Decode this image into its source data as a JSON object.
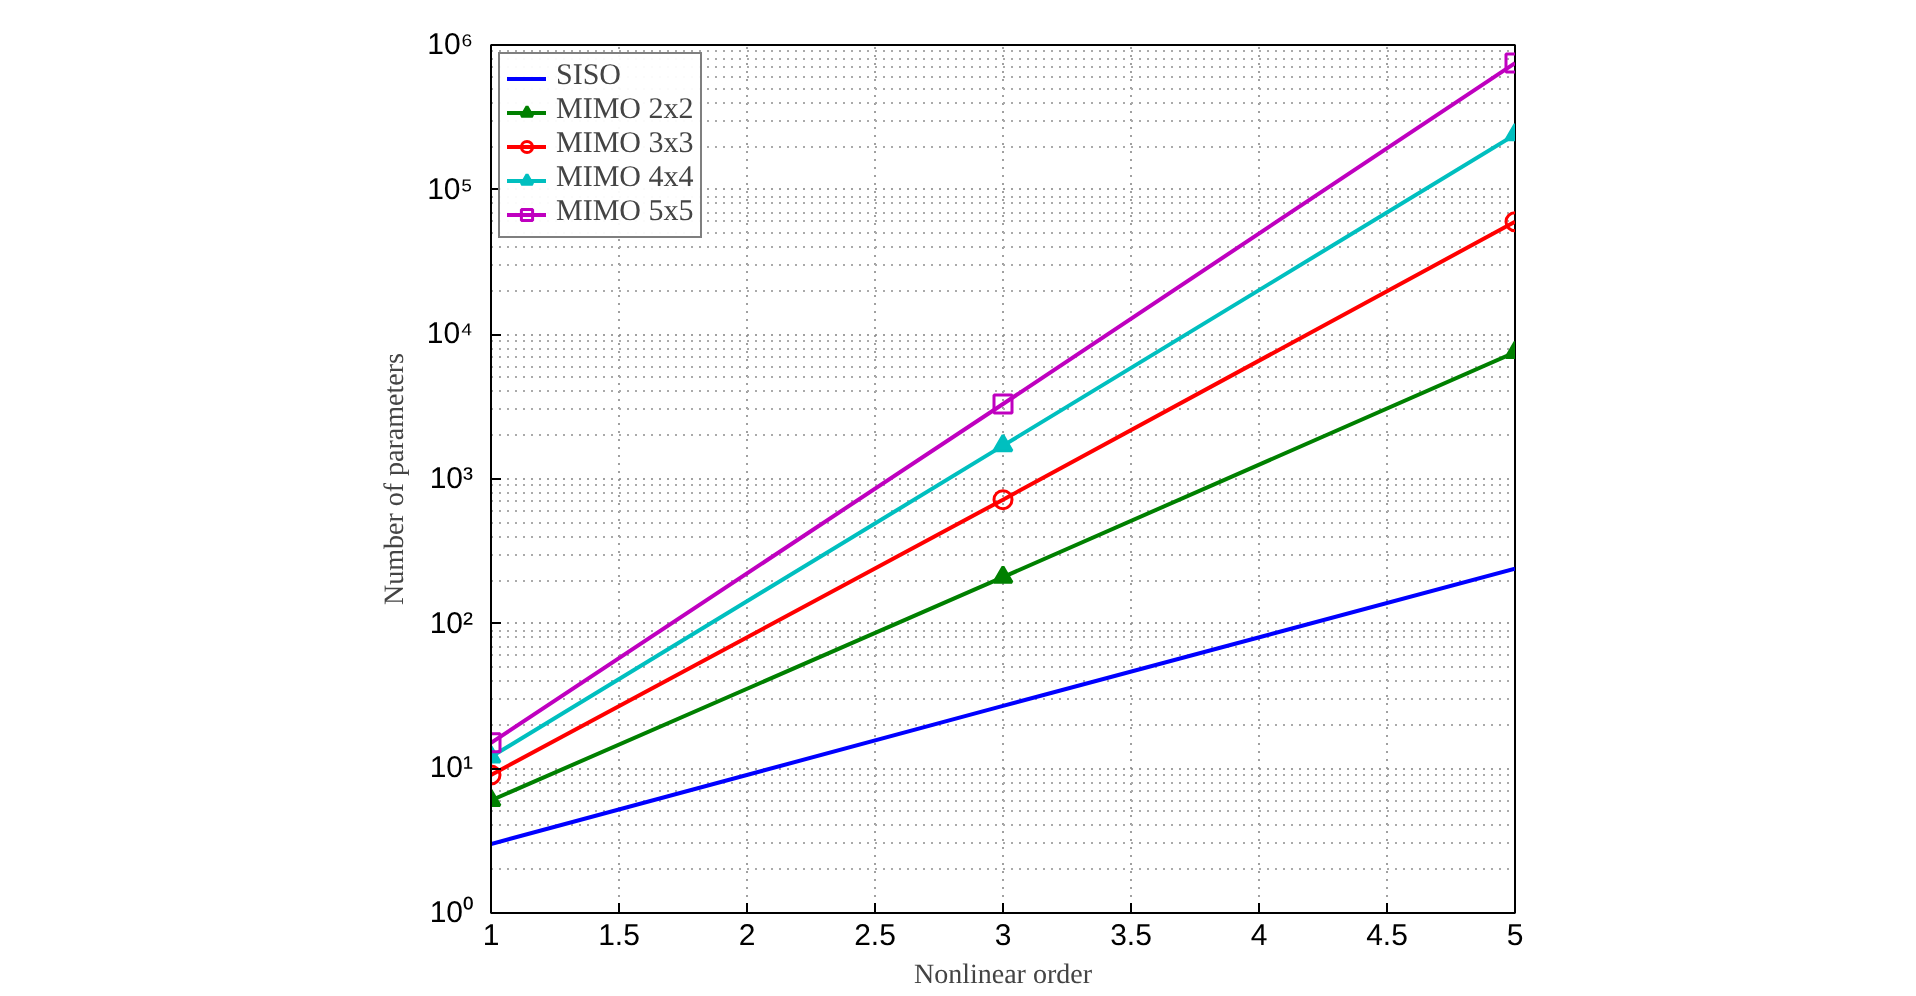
{
  "chart_data": {
    "type": "line",
    "xlabel": "Nonlinear order",
    "ylabel": "Number of parameters",
    "x": [
      1,
      3,
      5
    ],
    "series": [
      {
        "name": "SISO",
        "color": "#0000ff",
        "values": [
          3,
          27,
          240
        ],
        "marker": "none"
      },
      {
        "name": "MIMO 2x2",
        "color": "#008000",
        "values": [
          6,
          210,
          7500
        ],
        "marker": "triangle"
      },
      {
        "name": "MIMO 3x3",
        "color": "#ff0000",
        "values": [
          9,
          720,
          60000
        ],
        "marker": "circle"
      },
      {
        "name": "MIMO 4x4",
        "color": "#00bfbf",
        "values": [
          12,
          1700,
          240000
        ],
        "marker": "triangle"
      },
      {
        "name": "MIMO 5x5",
        "color": "#bf00bf",
        "values": [
          15,
          3300,
          750000
        ],
        "marker": "square"
      }
    ],
    "log": "y",
    "xlim": [
      1,
      5
    ],
    "ylim": [
      1,
      1000000
    ],
    "xticks": [
      1,
      1.5,
      2,
      2.5,
      3,
      3.5,
      4,
      4.5,
      5
    ],
    "yticks": [
      {
        "value": 1,
        "label": "10⁰"
      },
      {
        "value": 10,
        "label": "10¹"
      },
      {
        "value": 100,
        "label": "10²"
      },
      {
        "value": 1000,
        "label": "10³"
      },
      {
        "value": 10000,
        "label": "10⁴"
      },
      {
        "value": 100000,
        "label": "10⁵"
      },
      {
        "value": 1000000,
        "label": "10⁶"
      }
    ],
    "grid": true,
    "legend": "top left",
    "line_style": "solid"
  }
}
